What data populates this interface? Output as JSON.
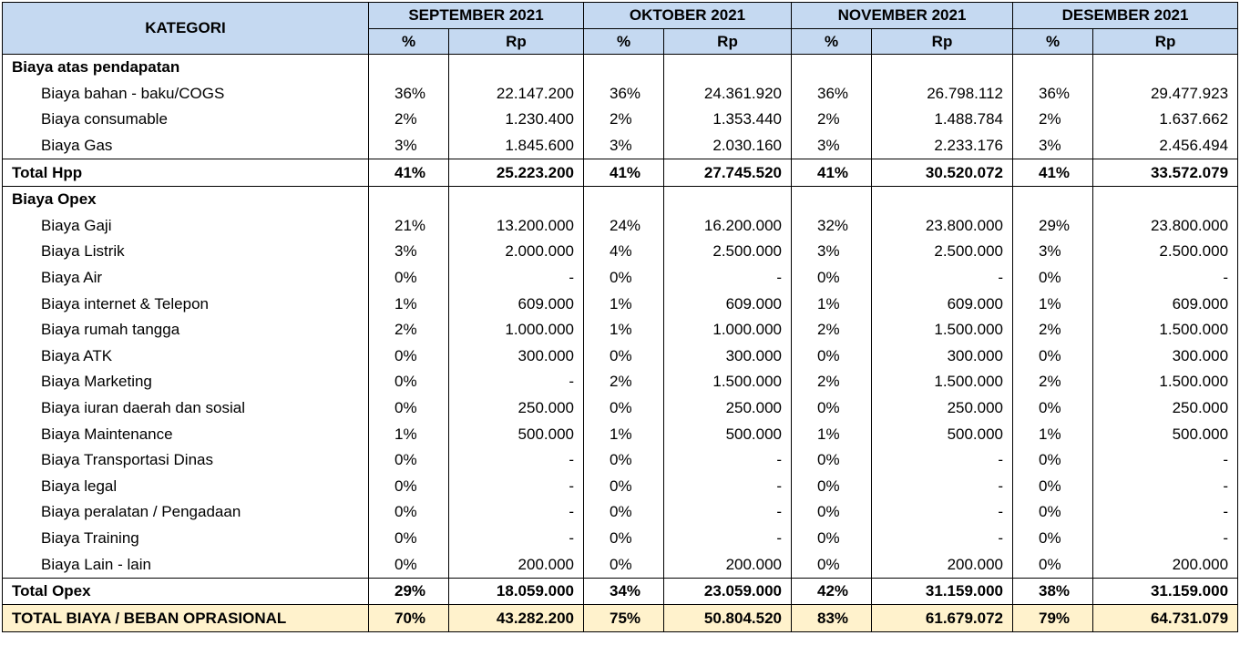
{
  "header": {
    "category_label": "KATEGORI",
    "months": [
      "SEPTEMBER 2021",
      "OKTOBER 2021",
      "NOVEMBER 2021",
      "DESEMBER 2021"
    ],
    "pct_label": "%",
    "rp_label": "Rp"
  },
  "sections": [
    {
      "title": "Biaya atas pendapatan",
      "rows": [
        {
          "label": "Biaya bahan - baku/COGS",
          "cells": [
            [
              "36%",
              "22.147.200"
            ],
            [
              "36%",
              "24.361.920"
            ],
            [
              "36%",
              "26.798.112"
            ],
            [
              "36%",
              "29.477.923"
            ]
          ]
        },
        {
          "label": "Biaya consumable",
          "cells": [
            [
              "2%",
              "1.230.400"
            ],
            [
              "2%",
              "1.353.440"
            ],
            [
              "2%",
              "1.488.784"
            ],
            [
              "2%",
              "1.637.662"
            ]
          ]
        },
        {
          "label": "Biaya Gas",
          "cells": [
            [
              "3%",
              "1.845.600"
            ],
            [
              "3%",
              "2.030.160"
            ],
            [
              "3%",
              "2.233.176"
            ],
            [
              "3%",
              "2.456.494"
            ]
          ]
        }
      ],
      "total": {
        "label": "Total Hpp",
        "cells": [
          [
            "41%",
            "25.223.200"
          ],
          [
            "41%",
            "27.745.520"
          ],
          [
            "41%",
            "30.520.072"
          ],
          [
            "41%",
            "33.572.079"
          ]
        ]
      }
    },
    {
      "title": "Biaya Opex",
      "rows": [
        {
          "label": "Biaya Gaji",
          "cells": [
            [
              "21%",
              "13.200.000"
            ],
            [
              "24%",
              "16.200.000"
            ],
            [
              "32%",
              "23.800.000"
            ],
            [
              "29%",
              "23.800.000"
            ]
          ]
        },
        {
          "label": "Biaya Listrik",
          "cells": [
            [
              "3%",
              "2.000.000"
            ],
            [
              "4%",
              "2.500.000"
            ],
            [
              "3%",
              "2.500.000"
            ],
            [
              "3%",
              "2.500.000"
            ]
          ]
        },
        {
          "label": "Biaya Air",
          "cells": [
            [
              "0%",
              "-"
            ],
            [
              "0%",
              "-"
            ],
            [
              "0%",
              "-"
            ],
            [
              "0%",
              "-"
            ]
          ]
        },
        {
          "label": "Biaya internet & Telepon",
          "cells": [
            [
              "1%",
              "609.000"
            ],
            [
              "1%",
              "609.000"
            ],
            [
              "1%",
              "609.000"
            ],
            [
              "1%",
              "609.000"
            ]
          ]
        },
        {
          "label": "Biaya rumah tangga",
          "cells": [
            [
              "2%",
              "1.000.000"
            ],
            [
              "1%",
              "1.000.000"
            ],
            [
              "2%",
              "1.500.000"
            ],
            [
              "2%",
              "1.500.000"
            ]
          ]
        },
        {
          "label": "Biaya ATK",
          "cells": [
            [
              "0%",
              "300.000"
            ],
            [
              "0%",
              "300.000"
            ],
            [
              "0%",
              "300.000"
            ],
            [
              "0%",
              "300.000"
            ]
          ]
        },
        {
          "label": "Biaya Marketing",
          "cells": [
            [
              "0%",
              "-"
            ],
            [
              "2%",
              "1.500.000"
            ],
            [
              "2%",
              "1.500.000"
            ],
            [
              "2%",
              "1.500.000"
            ]
          ]
        },
        {
          "label": "Biaya iuran daerah dan sosial",
          "cells": [
            [
              "0%",
              "250.000"
            ],
            [
              "0%",
              "250.000"
            ],
            [
              "0%",
              "250.000"
            ],
            [
              "0%",
              "250.000"
            ]
          ]
        },
        {
          "label": "Biaya Maintenance",
          "cells": [
            [
              "1%",
              "500.000"
            ],
            [
              "1%",
              "500.000"
            ],
            [
              "1%",
              "500.000"
            ],
            [
              "1%",
              "500.000"
            ]
          ]
        },
        {
          "label": "Biaya Transportasi Dinas",
          "cells": [
            [
              "0%",
              "-"
            ],
            [
              "0%",
              "-"
            ],
            [
              "0%",
              "-"
            ],
            [
              "0%",
              "-"
            ]
          ]
        },
        {
          "label": "Biaya legal",
          "cells": [
            [
              "0%",
              "-"
            ],
            [
              "0%",
              "-"
            ],
            [
              "0%",
              "-"
            ],
            [
              "0%",
              "-"
            ]
          ]
        },
        {
          "label": "Biaya peralatan / Pengadaan",
          "cells": [
            [
              "0%",
              "-"
            ],
            [
              "0%",
              "-"
            ],
            [
              "0%",
              "-"
            ],
            [
              "0%",
              "-"
            ]
          ]
        },
        {
          "label": "Biaya Training",
          "cells": [
            [
              "0%",
              "-"
            ],
            [
              "0%",
              "-"
            ],
            [
              "0%",
              "-"
            ],
            [
              "0%",
              "-"
            ]
          ]
        },
        {
          "label": "Biaya Lain - lain",
          "cells": [
            [
              "0%",
              "200.000"
            ],
            [
              "0%",
              "200.000"
            ],
            [
              "0%",
              "200.000"
            ],
            [
              "0%",
              "200.000"
            ]
          ]
        }
      ],
      "total": {
        "label": "Total Opex",
        "cells": [
          [
            "29%",
            "18.059.000"
          ],
          [
            "34%",
            "23.059.000"
          ],
          [
            "42%",
            "31.159.000"
          ],
          [
            "38%",
            "31.159.000"
          ]
        ]
      }
    }
  ],
  "grand_total": {
    "label": "TOTAL BIAYA / BEBAN OPRASIONAL",
    "cells": [
      [
        "70%",
        "43.282.200"
      ],
      [
        "75%",
        "50.804.520"
      ],
      [
        "83%",
        "61.679.072"
      ],
      [
        "79%",
        "64.731.079"
      ]
    ]
  },
  "colors": {
    "header_bg": "#c5d9f1",
    "grand_total_bg": "#fff2cc"
  }
}
